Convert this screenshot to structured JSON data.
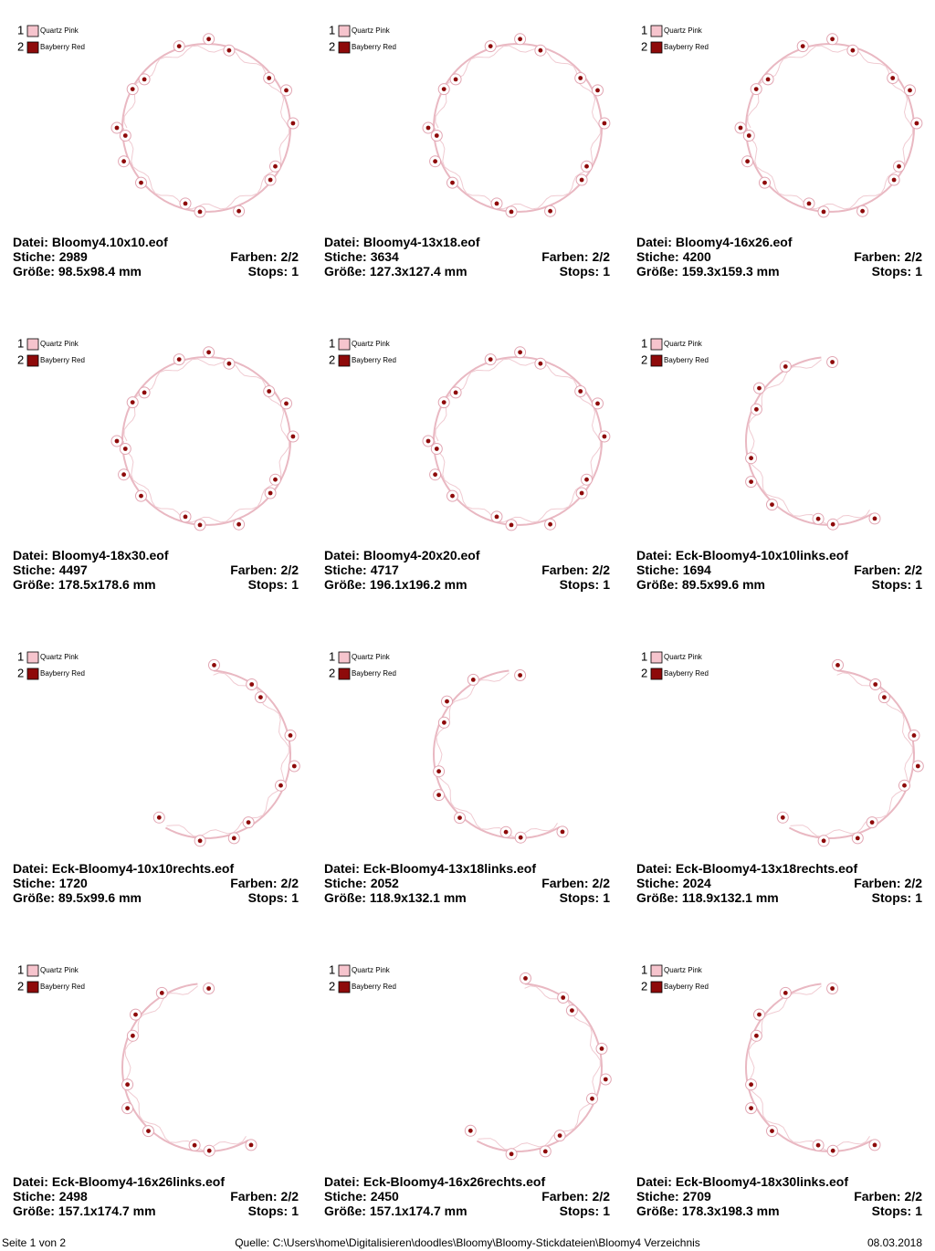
{
  "legend": [
    {
      "number": 1,
      "name": "Quartz Pink",
      "color": "#f6c4cd"
    },
    {
      "number": 2,
      "name": "Bayberry Red",
      "color": "#8e0a0a"
    }
  ],
  "labels": {
    "file": "Datei:",
    "stitches": "Stiche:",
    "colors": "Farben:",
    "size": "Größe:",
    "stops": "Stops:"
  },
  "designs": [
    {
      "file": "Bloomy4.10x10.eof",
      "stitches": 2989,
      "colors": "2/2",
      "size": "98.5x98.4 mm",
      "stops": 1
    },
    {
      "file": "Bloomy4-13x18.eof",
      "stitches": 3634,
      "colors": "2/2",
      "size": "127.3x127.4 mm",
      "stops": 1
    },
    {
      "file": "Bloomy4-16x26.eof",
      "stitches": 4200,
      "colors": "2/2",
      "size": "159.3x159.3 mm",
      "stops": 1
    },
    {
      "file": "Bloomy4-18x30.eof",
      "stitches": 4497,
      "colors": "2/2",
      "size": "178.5x178.6 mm",
      "stops": 1
    },
    {
      "file": "Bloomy4-20x20.eof",
      "stitches": 4717,
      "colors": "2/2",
      "size": "196.1x196.2 mm",
      "stops": 1
    },
    {
      "file": "Eck-Bloomy4-10x10links.eof",
      "stitches": 1694,
      "colors": "2/2",
      "size": "89.5x99.6 mm",
      "stops": 1
    },
    {
      "file": "Eck-Bloomy4-10x10rechts.eof",
      "stitches": 1720,
      "colors": "2/2",
      "size": "89.5x99.6 mm",
      "stops": 1
    },
    {
      "file": "Eck-Bloomy4-13x18links.eof",
      "stitches": 2052,
      "colors": "2/2",
      "size": "118.9x132.1 mm",
      "stops": 1
    },
    {
      "file": "Eck-Bloomy4-13x18rechts.eof",
      "stitches": 2024,
      "colors": "2/2",
      "size": "118.9x132.1 mm",
      "stops": 1
    },
    {
      "file": "Eck-Bloomy4-16x26links.eof",
      "stitches": 2498,
      "colors": "2/2",
      "size": "157.1x174.7 mm",
      "stops": 1
    },
    {
      "file": "Eck-Bloomy4-16x26rechts.eof",
      "stitches": 2450,
      "colors": "2/2",
      "size": "157.1x174.7 mm",
      "stops": 1
    },
    {
      "file": "Eck-Bloomy4-18x30links.eof",
      "stitches": 2709,
      "colors": "2/2",
      "size": "178.3x198.3 mm",
      "stops": 1
    }
  ],
  "footer": {
    "page": "Seite 1 von 2",
    "source": "Quelle: C:\\Users\\home\\Digitalisieren\\doodles\\Bloomy\\Bloomy-Stickdateien\\Bloomy4 Verzeichnis",
    "date": "08.03.2018"
  }
}
